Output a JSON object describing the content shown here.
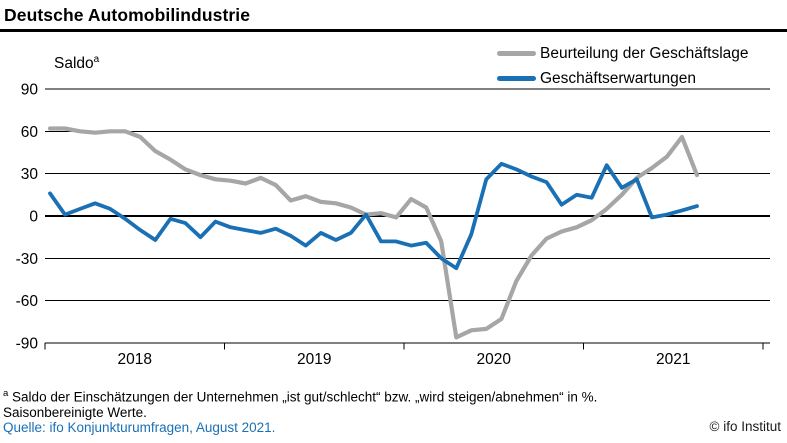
{
  "header": {
    "title": "Deutsche Automobilindustrie"
  },
  "chart": {
    "saldo_label": "Saldo",
    "saldo_footnote_marker": "a",
    "legend": [
      {
        "label": "Beurteilung der Geschäftslage",
        "color": "#a6a6a6"
      },
      {
        "label": "Geschäftserwartungen",
        "color": "#1a70b5"
      }
    ]
  },
  "chart_data": {
    "type": "line",
    "title": "Deutsche Automobilindustrie",
    "ylabel": "Saldo",
    "unit": "Saldo in %, saisonbereinigt",
    "ylim": [
      -90,
      90
    ],
    "yticks": [
      90,
      60,
      30,
      0,
      -30,
      -60,
      -90
    ],
    "grid": true,
    "legend_position": "top-right",
    "x_year_labels": [
      "2018",
      "2019",
      "2020",
      "2021"
    ],
    "months": [
      "2018-01",
      "2018-02",
      "2018-03",
      "2018-04",
      "2018-05",
      "2018-06",
      "2018-07",
      "2018-08",
      "2018-09",
      "2018-10",
      "2018-11",
      "2018-12",
      "2019-01",
      "2019-02",
      "2019-03",
      "2019-04",
      "2019-05",
      "2019-06",
      "2019-07",
      "2019-08",
      "2019-09",
      "2019-10",
      "2019-11",
      "2019-12",
      "2020-01",
      "2020-02",
      "2020-03",
      "2020-04",
      "2020-05",
      "2020-06",
      "2020-07",
      "2020-08",
      "2020-09",
      "2020-10",
      "2020-11",
      "2020-12",
      "2021-01",
      "2021-02",
      "2021-03",
      "2021-04",
      "2021-05",
      "2021-06",
      "2021-07",
      "2021-08"
    ],
    "series": [
      {
        "name": "Beurteilung der Geschäftslage",
        "color": "#a6a6a6",
        "values": [
          62,
          62,
          60,
          59,
          60,
          60,
          56,
          46,
          40,
          33,
          29,
          26,
          25,
          23,
          27,
          22,
          11,
          14,
          10,
          9,
          6,
          1,
          2,
          -1,
          12,
          6,
          -18,
          -86,
          -81,
          -80,
          -73,
          -46,
          -28,
          -16,
          -11,
          -8,
          -3,
          5,
          15,
          27,
          34,
          42,
          56,
          29
        ]
      },
      {
        "name": "Geschäftserwartungen",
        "color": "#1a70b5",
        "values": [
          16,
          1,
          5,
          9,
          5,
          -2,
          -10,
          -17,
          -2,
          -5,
          -15,
          -4,
          -8,
          -10,
          -12,
          -9,
          -14,
          -21,
          -12,
          -17,
          -12,
          1,
          -18,
          -18,
          -21,
          -19,
          -30,
          -37,
          -13,
          26,
          37,
          33,
          28,
          24,
          8,
          15,
          13,
          36,
          20,
          26,
          -1,
          1,
          4,
          7
        ]
      }
    ]
  },
  "footer": {
    "footnote_marker": "a",
    "footnote_text": " Saldo der Einschätzungen der Unternehmen „ist gut/schlecht“ bzw. „wird steigen/abnehmen“ in %.",
    "footnote_line2": "Saisonbereinigte Werte.",
    "source": "Quelle: ifo Konjunkturumfragen, August 2021.",
    "copyright": "© ifo Institut"
  }
}
